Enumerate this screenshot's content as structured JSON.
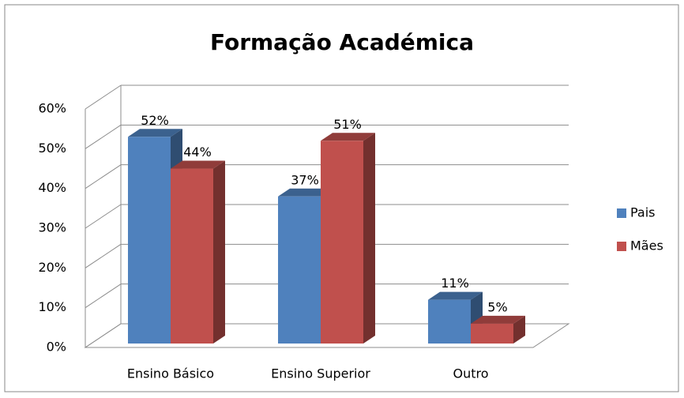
{
  "chart_data": {
    "type": "bar3d",
    "title": "Formação Académica",
    "categories": [
      "Ensino Básico",
      "Ensino Superior",
      "Outro"
    ],
    "series": [
      {
        "name": "Pais",
        "color": "#4f81bd",
        "values": [
          52,
          37,
          11
        ],
        "value_labels": [
          "52%",
          "37%",
          "11%"
        ]
      },
      {
        "name": "Mães",
        "color": "#c0504d",
        "values": [
          44,
          51,
          5
        ],
        "value_labels": [
          "44%",
          "51%",
          "5%"
        ]
      }
    ],
    "ylim": [
      0,
      60
    ],
    "yticks": [
      {
        "value": 0,
        "label": "0%"
      },
      {
        "value": 10,
        "label": "10%"
      },
      {
        "value": 20,
        "label": "20%"
      },
      {
        "value": 30,
        "label": "30%"
      },
      {
        "value": 40,
        "label": "40%"
      },
      {
        "value": 50,
        "label": "50%"
      },
      {
        "value": 60,
        "label": "60%"
      }
    ],
    "grid": true,
    "legend": "right"
  }
}
